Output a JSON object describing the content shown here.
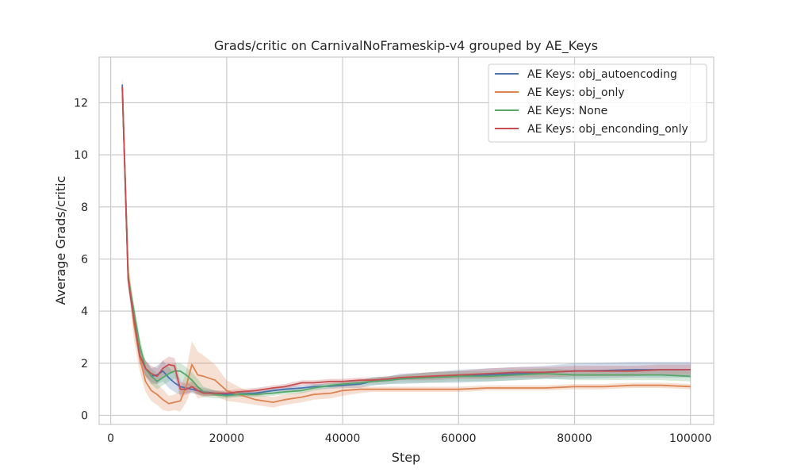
{
  "chart_data": {
    "type": "line",
    "title": "Grads/critic on CarnivalNoFrameskip-v4 grouped by AE_Keys",
    "xlabel": "Step",
    "ylabel": "Average Grads/critic",
    "xlim": [
      -2000,
      104000
    ],
    "ylim": [
      -0.35,
      13.75
    ],
    "xticks": [
      0,
      20000,
      40000,
      60000,
      80000,
      100000
    ],
    "yticks": [
      0,
      2,
      4,
      6,
      8,
      10,
      12
    ],
    "grid": true,
    "legend_position": "top-right",
    "x": [
      2000,
      3000,
      4000,
      5000,
      6000,
      7000,
      8000,
      9000,
      10000,
      11000,
      12000,
      13000,
      14000,
      15000,
      16000,
      18000,
      20000,
      22000,
      25000,
      28000,
      30000,
      33000,
      35000,
      38000,
      40000,
      43000,
      45000,
      48000,
      50000,
      55000,
      60000,
      65000,
      70000,
      75000,
      80000,
      85000,
      90000,
      95000,
      100000
    ],
    "series": [
      {
        "name": "AE Keys: obj_autoencoding",
        "color": "#4c72b0",
        "values": [
          12.7,
          5.3,
          3.6,
          2.3,
          1.8,
          1.5,
          1.55,
          1.7,
          1.45,
          1.25,
          1.1,
          1.05,
          1.0,
          0.95,
          0.9,
          0.85,
          0.8,
          0.82,
          0.85,
          0.95,
          1.0,
          1.05,
          1.1,
          1.12,
          1.15,
          1.2,
          1.3,
          1.35,
          1.4,
          1.45,
          1.5,
          1.55,
          1.6,
          1.65,
          1.7,
          1.72,
          1.75,
          1.75,
          1.75
        ],
        "band": [
          0.3,
          0.3,
          0.3,
          0.3,
          0.3,
          0.3,
          0.35,
          0.4,
          0.4,
          0.35,
          0.3,
          0.2,
          0.15,
          0.15,
          0.15,
          0.1,
          0.1,
          0.1,
          0.1,
          0.1,
          0.1,
          0.1,
          0.1,
          0.1,
          0.1,
          0.15,
          0.15,
          0.15,
          0.2,
          0.2,
          0.25,
          0.25,
          0.25,
          0.25,
          0.3,
          0.3,
          0.3,
          0.3,
          0.3
        ]
      },
      {
        "name": "AE Keys: obj_only",
        "color": "#dd8452",
        "values": [
          12.6,
          5.5,
          3.5,
          2.2,
          1.3,
          0.95,
          0.8,
          0.6,
          0.45,
          0.5,
          0.55,
          1.1,
          1.95,
          1.55,
          1.5,
          1.35,
          0.95,
          0.8,
          0.6,
          0.5,
          0.6,
          0.7,
          0.8,
          0.85,
          0.95,
          1.0,
          1.0,
          1.0,
          1.0,
          1.0,
          1.0,
          1.05,
          1.05,
          1.05,
          1.1,
          1.1,
          1.15,
          1.15,
          1.1
        ],
        "band": [
          0.3,
          0.5,
          0.6,
          0.5,
          0.4,
          0.4,
          0.4,
          0.4,
          0.3,
          0.3,
          0.4,
          0.6,
          0.9,
          0.9,
          0.8,
          0.6,
          0.4,
          0.3,
          0.2,
          0.2,
          0.2,
          0.2,
          0.2,
          0.2,
          0.2,
          0.15,
          0.1,
          0.1,
          0.1,
          0.1,
          0.1,
          0.1,
          0.1,
          0.1,
          0.1,
          0.1,
          0.1,
          0.1,
          0.1
        ]
      },
      {
        "name": "AE Keys: None",
        "color": "#55a868",
        "values": [
          12.6,
          5.3,
          4.0,
          2.7,
          1.8,
          1.5,
          1.3,
          1.45,
          1.6,
          1.7,
          1.7,
          1.55,
          1.35,
          1.1,
          0.9,
          0.8,
          0.75,
          0.8,
          0.8,
          0.85,
          0.9,
          0.95,
          1.05,
          1.15,
          1.2,
          1.25,
          1.3,
          1.35,
          1.4,
          1.45,
          1.5,
          1.5,
          1.55,
          1.6,
          1.55,
          1.55,
          1.55,
          1.55,
          1.5
        ],
        "band": [
          0.3,
          0.3,
          0.3,
          0.3,
          0.3,
          0.3,
          0.3,
          0.3,
          0.3,
          0.3,
          0.3,
          0.3,
          0.3,
          0.3,
          0.2,
          0.15,
          0.1,
          0.1,
          0.1,
          0.1,
          0.1,
          0.1,
          0.1,
          0.1,
          0.1,
          0.1,
          0.15,
          0.15,
          0.15,
          0.2,
          0.2,
          0.2,
          0.2,
          0.2,
          0.2,
          0.2,
          0.2,
          0.2,
          0.2
        ]
      },
      {
        "name": "AE Keys: obj_enconding_only",
        "color": "#c44e52",
        "values": [
          12.6,
          5.2,
          3.7,
          2.3,
          1.8,
          1.6,
          1.5,
          1.8,
          1.95,
          1.9,
          1.0,
          1.0,
          1.1,
          0.95,
          0.85,
          0.85,
          0.85,
          0.9,
          0.95,
          1.05,
          1.1,
          1.25,
          1.25,
          1.3,
          1.3,
          1.35,
          1.35,
          1.4,
          1.45,
          1.5,
          1.55,
          1.6,
          1.65,
          1.65,
          1.7,
          1.7,
          1.7,
          1.75,
          1.75
        ],
        "band": [
          0.3,
          0.3,
          0.3,
          0.3,
          0.3,
          0.3,
          0.3,
          0.3,
          0.3,
          0.3,
          0.3,
          0.2,
          0.2,
          0.15,
          0.1,
          0.1,
          0.1,
          0.1,
          0.1,
          0.1,
          0.1,
          0.1,
          0.1,
          0.1,
          0.1,
          0.1,
          0.1,
          0.1,
          0.1,
          0.15,
          0.15,
          0.2,
          0.2,
          0.2,
          0.2,
          0.2,
          0.2,
          0.2,
          0.2
        ]
      }
    ]
  }
}
